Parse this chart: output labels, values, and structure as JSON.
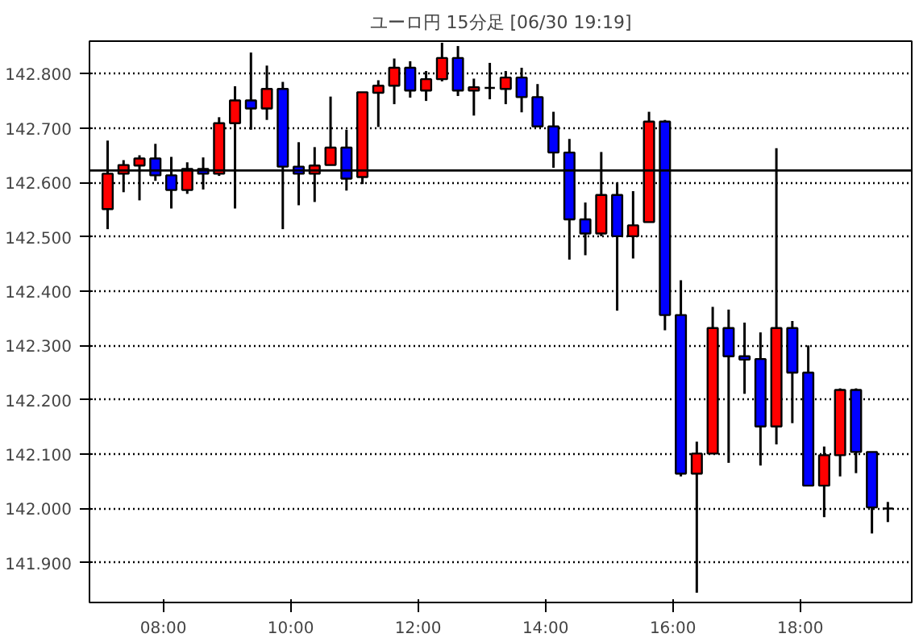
{
  "chart_data": {
    "type": "candlestick",
    "title": "ユーロ円 15分足 [06/30 19:19]",
    "x": [
      7.125,
      7.375,
      7.625,
      7.875,
      8.125,
      8.375,
      8.625,
      8.875,
      9.125,
      9.375,
      9.625,
      9.875,
      10.125,
      10.375,
      10.625,
      10.875,
      11.125,
      11.375,
      11.625,
      11.875,
      12.125,
      12.375,
      12.625,
      12.875,
      13.125,
      13.375,
      13.625,
      13.875,
      14.125,
      14.375,
      14.625,
      14.875,
      15.125,
      15.375,
      15.625,
      15.875,
      16.125,
      16.375,
      16.625,
      16.875,
      17.125,
      17.375,
      17.625,
      17.875,
      18.125,
      18.375,
      18.625,
      18.875,
      19.125,
      19.375
    ],
    "ohlc": [
      [
        142.551,
        142.677,
        142.514,
        142.616
      ],
      [
        142.616,
        142.641,
        142.582,
        142.632
      ],
      [
        142.631,
        142.65,
        142.567,
        142.644
      ],
      [
        142.644,
        142.671,
        142.603,
        142.613
      ],
      [
        142.613,
        142.647,
        142.552,
        142.586
      ],
      [
        142.586,
        142.637,
        142.579,
        142.625
      ],
      [
        142.625,
        142.646,
        142.587,
        142.616
      ],
      [
        142.616,
        142.72,
        142.612,
        142.709
      ],
      [
        142.709,
        142.777,
        142.552,
        142.751
      ],
      [
        142.751,
        142.839,
        142.697,
        142.736
      ],
      [
        142.736,
        142.815,
        142.715,
        142.772
      ],
      [
        142.772,
        142.785,
        142.514,
        142.629
      ],
      [
        142.629,
        142.674,
        142.558,
        142.616
      ],
      [
        142.616,
        142.665,
        142.564,
        142.631
      ],
      [
        142.632,
        142.758,
        142.632,
        142.664
      ],
      [
        142.664,
        142.697,
        142.585,
        142.607
      ],
      [
        142.61,
        142.766,
        142.597,
        142.766
      ],
      [
        142.765,
        142.788,
        142.702,
        142.778
      ],
      [
        142.778,
        142.828,
        142.744,
        142.811
      ],
      [
        142.811,
        142.823,
        142.756,
        142.769
      ],
      [
        142.769,
        142.805,
        142.75,
        142.79
      ],
      [
        142.79,
        142.857,
        142.786,
        142.829
      ],
      [
        142.829,
        142.851,
        142.759,
        142.769
      ],
      [
        142.769,
        142.791,
        142.723,
        142.775
      ],
      [
        142.774,
        142.82,
        142.753,
        142.774
      ],
      [
        142.772,
        142.805,
        142.744,
        142.793
      ],
      [
        142.793,
        142.811,
        142.729,
        142.757
      ],
      [
        142.757,
        142.781,
        142.703,
        142.703
      ],
      [
        142.703,
        142.73,
        142.627,
        142.655
      ],
      [
        142.655,
        142.68,
        142.458,
        142.532
      ],
      [
        142.532,
        142.563,
        142.466,
        142.506
      ],
      [
        142.506,
        142.656,
        142.501,
        142.577
      ],
      [
        142.577,
        142.6,
        142.364,
        142.501
      ],
      [
        142.501,
        142.584,
        142.46,
        142.521
      ],
      [
        142.527,
        142.73,
        142.527,
        142.712
      ],
      [
        142.712,
        142.715,
        142.328,
        142.356
      ],
      [
        142.356,
        142.42,
        142.059,
        142.064
      ],
      [
        142.064,
        142.123,
        141.845,
        142.101
      ],
      [
        142.101,
        142.371,
        142.101,
        142.332
      ],
      [
        142.332,
        142.366,
        142.084,
        142.28
      ],
      [
        142.28,
        142.342,
        142.211,
        142.274
      ],
      [
        142.275,
        142.324,
        142.079,
        142.151
      ],
      [
        142.151,
        142.663,
        142.118,
        142.332
      ],
      [
        142.332,
        142.345,
        142.157,
        142.25
      ],
      [
        142.25,
        142.3,
        142.042,
        142.042
      ],
      [
        142.042,
        142.114,
        141.984,
        142.098
      ],
      [
        142.098,
        142.221,
        142.059,
        142.218
      ],
      [
        142.218,
        142.221,
        142.065,
        142.104
      ],
      [
        142.104,
        142.104,
        141.954,
        142.002
      ],
      [
        142.0,
        142.012,
        141.975,
        142.0
      ]
    ],
    "colors": [
      "#ff0000",
      "#ff0000",
      "#ff0000",
      "#0000ff",
      "#0000ff",
      "#ff0000",
      "#0000ff",
      "#ff0000",
      "#ff0000",
      "#0000ff",
      "#ff0000",
      "#0000ff",
      "#0000ff",
      "#ff0000",
      "#ff0000",
      "#0000ff",
      "#ff0000",
      "#ff0000",
      "#ff0000",
      "#0000ff",
      "#ff0000",
      "#ff0000",
      "#0000ff",
      "#ff0000",
      "#000000",
      "#ff0000",
      "#0000ff",
      "#0000ff",
      "#0000ff",
      "#0000ff",
      "#0000ff",
      "#ff0000",
      "#0000ff",
      "#ff0000",
      "#ff0000",
      "#0000ff",
      "#0000ff",
      "#ff0000",
      "#ff0000",
      "#0000ff",
      "#0000ff",
      "#0000ff",
      "#ff0000",
      "#0000ff",
      "#0000ff",
      "#ff0000",
      "#ff0000",
      "#0000ff",
      "#0000ff",
      "#000000"
    ],
    "xlim": [
      6.84,
      19.75
    ],
    "ylim": [
      141.827,
      142.86
    ],
    "xticks": [
      {
        "value": 8,
        "label": "08:00"
      },
      {
        "value": 10,
        "label": "10:00"
      },
      {
        "value": 12,
        "label": "12:00"
      },
      {
        "value": 14,
        "label": "14:00"
      },
      {
        "value": 16,
        "label": "16:00"
      },
      {
        "value": 18,
        "label": "18:00"
      }
    ],
    "yticks": [
      {
        "value": 141.9,
        "label": "141.900"
      },
      {
        "value": 142.0,
        "label": "142.000"
      },
      {
        "value": 142.1,
        "label": "142.100"
      },
      {
        "value": 142.2,
        "label": "142.200"
      },
      {
        "value": 142.3,
        "label": "142.300"
      },
      {
        "value": 142.4,
        "label": "142.400"
      },
      {
        "value": 142.5,
        "label": "142.500"
      },
      {
        "value": 142.6,
        "label": "142.600"
      },
      {
        "value": 142.7,
        "label": "142.700"
      },
      {
        "value": 142.8,
        "label": "142.800"
      }
    ],
    "grid": "y",
    "ref_lines": [
      {
        "axis": "y",
        "value": 142.622,
        "color": "#000000"
      }
    ]
  }
}
